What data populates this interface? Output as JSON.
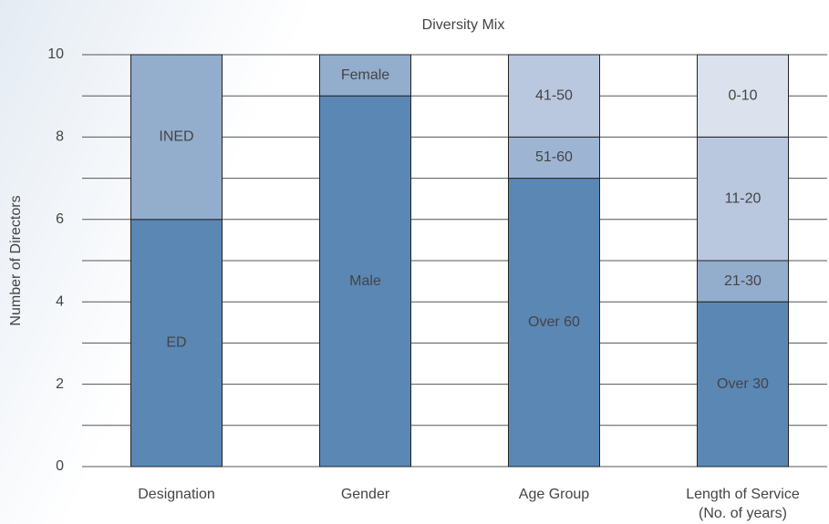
{
  "chart_data": {
    "type": "stacked-bar",
    "title": "Diversity Mix",
    "y_label": "Number of Directors",
    "ylim": [
      0,
      10
    ],
    "yticks": [
      0,
      2,
      4,
      6,
      8,
      10
    ],
    "minor_yticks": [
      1,
      3,
      5,
      7,
      9
    ],
    "grid": true,
    "bars": [
      {
        "category": [
          "Designation"
        ],
        "segments": [
          {
            "label": "ED",
            "value": 6,
            "color": "#5b87b5"
          },
          {
            "label": "INED",
            "value": 4,
            "color": "#93adcd"
          }
        ]
      },
      {
        "category": [
          "Gender"
        ],
        "segments": [
          {
            "label": "Male",
            "value": 9,
            "color": "#5b87b5"
          },
          {
            "label": "Female",
            "value": 1,
            "color": "#93adcd"
          }
        ]
      },
      {
        "category": [
          "Age Group"
        ],
        "segments": [
          {
            "label": "Over 60",
            "value": 7,
            "color": "#5b87b5"
          },
          {
            "label": "51-60",
            "value": 1,
            "color": "#9db5d3"
          },
          {
            "label": "41-50",
            "value": 2,
            "color": "#b9c8df"
          }
        ]
      },
      {
        "category": [
          "Length of Service",
          "(No. of years)"
        ],
        "segments": [
          {
            "label": "Over 30",
            "value": 4,
            "color": "#5b87b5"
          },
          {
            "label": "21-30",
            "value": 1,
            "color": "#93adcd"
          },
          {
            "label": "11-20",
            "value": 3,
            "color": "#b9c8df"
          },
          {
            "label": "0-10",
            "value": 2,
            "color": "#dbe2ee"
          }
        ]
      }
    ]
  }
}
